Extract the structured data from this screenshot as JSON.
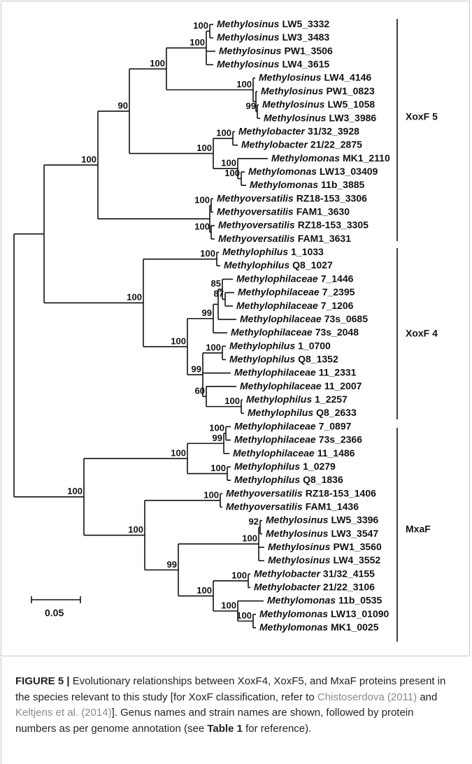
{
  "leaves": [
    {
      "genus": "Methylosinus",
      "strain": "LW5_3332"
    },
    {
      "genus": "Methylosinus",
      "strain": "LW3_3483"
    },
    {
      "genus": "Methylosinus",
      "strain": "PW1_3506"
    },
    {
      "genus": "Methylosinus",
      "strain": "LW4_3615"
    },
    {
      "genus": "Methylosinus",
      "strain": "LW4_4146"
    },
    {
      "genus": "Methylosinus",
      "strain": "PW1_0823"
    },
    {
      "genus": "Methylosinus",
      "strain": "LW5_1058"
    },
    {
      "genus": "Methylosinus",
      "strain": "LW3_3986"
    },
    {
      "genus": "Methylobacter",
      "strain": "31/32_3928"
    },
    {
      "genus": "Methylobacter",
      "strain": "21/22_2875"
    },
    {
      "genus": "Methylomonas",
      "strain": "MK1_2110"
    },
    {
      "genus": "Methylomonas",
      "strain": "LW13_03409"
    },
    {
      "genus": "Methylomonas",
      "strain": "11b_3885"
    },
    {
      "genus": "Methyoversatilis",
      "strain": "RZ18-153_3306"
    },
    {
      "genus": "Methyoversatilis",
      "strain": "FAM1_3630"
    },
    {
      "genus": "Methyoversatilis",
      "strain": "RZ18-153_3305"
    },
    {
      "genus": "Methyoversatilis",
      "strain": "FAM1_3631"
    },
    {
      "genus": "Methylophilus",
      "strain": "1_1033"
    },
    {
      "genus": "Methylophilus",
      "strain": "Q8_1027"
    },
    {
      "genus": "Methylophilaceae",
      "strain": "7_1446"
    },
    {
      "genus": "Methylophilaceae",
      "strain": "7_2395"
    },
    {
      "genus": "Methylophilaceae",
      "strain": "7_1206"
    },
    {
      "genus": "Methylophilaceae",
      "strain": "73s_0685"
    },
    {
      "genus": "Methylophilaceae",
      "strain": "73s_2048"
    },
    {
      "genus": "Methylophilus",
      "strain": "1_0700"
    },
    {
      "genus": "Methylophilus",
      "strain": "Q8_1352"
    },
    {
      "genus": "Methylophilaceae",
      "strain": "11_2331"
    },
    {
      "genus": "Methylophilaceae",
      "strain": "11_2007"
    },
    {
      "genus": "Methylophilus",
      "strain": "1_2257"
    },
    {
      "genus": "Methylophilus",
      "strain": "Q8_2633"
    },
    {
      "genus": "Methylophilaceae",
      "strain": "7_0897"
    },
    {
      "genus": "Methylophilaceae",
      "strain": "73s_2366"
    },
    {
      "genus": "Methylophilaceae",
      "strain": "11_1486"
    },
    {
      "genus": "Methylophilus",
      "strain": "1_0279"
    },
    {
      "genus": "Methylophilus",
      "strain": "Q8_1836"
    },
    {
      "genus": "Methyoversatilis",
      "strain": "RZ18-153_1406"
    },
    {
      "genus": "Methyoversatilis",
      "strain": "FAM1_1436"
    },
    {
      "genus": "Methylosinus",
      "strain": "LW5_3396"
    },
    {
      "genus": "Methylosinus",
      "strain": "LW3_3547"
    },
    {
      "genus": "Methylosinus",
      "strain": "PW1_3560"
    },
    {
      "genus": "Methylosinus",
      "strain": "LW4_3552"
    },
    {
      "genus": "Methylobacter",
      "strain": "31/32_4155"
    },
    {
      "genus": "Methylobacter",
      "strain": "21/22_3106"
    },
    {
      "genus": "Methylomonas",
      "strain": "11b_0535"
    },
    {
      "genus": "Methylomonas",
      "strain": "LW13_01090"
    },
    {
      "genus": "Methylomonas",
      "strain": "MK1_0025"
    }
  ],
  "supports": [
    100,
    100,
    100,
    90,
    100,
    99,
    100,
    100,
    100,
    100,
    100,
    100,
    100,
    100,
    100,
    85,
    87,
    99,
    100,
    100,
    99,
    60,
    100,
    100,
    99,
    100,
    100,
    100,
    100,
    92,
    100,
    100,
    100,
    99,
    100,
    100,
    100
  ],
  "clades": [
    "XoxF 5",
    "XoxF 4",
    "MxaF"
  ],
  "scale_bar": "0.05",
  "caption": {
    "label": "FIGURE 5 |",
    "text1": " Evolutionary relationships between XoxF4, XoxF5, and MxaF proteins present in the species relevant to this study [for XoxF classification, refer to ",
    "ref1": "Chistoserdova (2011)",
    "text2": " and ",
    "ref2": "Keltjens et al. (2014)",
    "text3": "]. Genus names and strain names are shown, followed by protein numbers as per genome annotation (see ",
    "table": "Table 1",
    "text4": " for reference)."
  }
}
